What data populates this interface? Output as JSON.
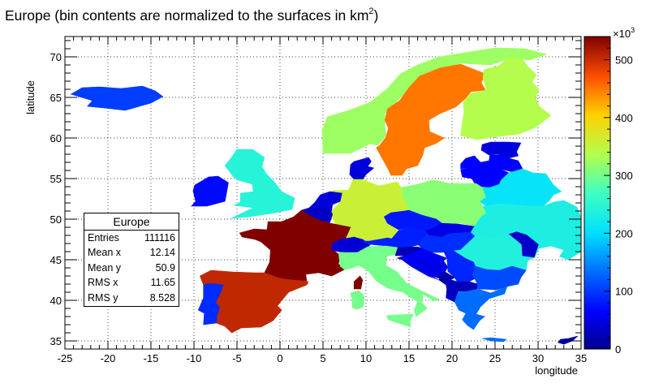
{
  "chart_data": {
    "type": "heatmap",
    "title": "Europe (bin contents are normalized to the surfaces in km",
    "title_superscript": "2",
    "title_suffix": ")",
    "xlabel": "longitude",
    "ylabel": "latitude",
    "xlim": [
      -25,
      35
    ],
    "ylim": [
      34,
      72.5
    ],
    "xticks": [
      -25,
      -20,
      -15,
      -10,
      -5,
      0,
      5,
      10,
      15,
      20,
      25,
      30,
      35
    ],
    "yticks": [
      35,
      40,
      45,
      50,
      55,
      60,
      65,
      70
    ],
    "grid": true,
    "colorbar": {
      "min": 0,
      "max": 540,
      "ticks": [
        0,
        100,
        200,
        300,
        400,
        500
      ],
      "multiplier": "×10",
      "multiplier_exp": "3"
    },
    "regions": [
      {
        "name": "Iceland",
        "value": 103
      },
      {
        "name": "Ireland",
        "value": 70
      },
      {
        "name": "United Kingdom",
        "value": 243
      },
      {
        "name": "Norway",
        "value": 324
      },
      {
        "name": "Sweden",
        "value": 450
      },
      {
        "name": "Finland",
        "value": 338
      },
      {
        "name": "Denmark",
        "value": 43
      },
      {
        "name": "Estonia",
        "value": 45
      },
      {
        "name": "Latvia",
        "value": 65
      },
      {
        "name": "Lithuania",
        "value": 65
      },
      {
        "name": "Belarus",
        "value": 208
      },
      {
        "name": "Poland",
        "value": 313
      },
      {
        "name": "Germany",
        "value": 357
      },
      {
        "name": "Netherlands",
        "value": 42
      },
      {
        "name": "Belgium",
        "value": 31
      },
      {
        "name": "France",
        "value": 544
      },
      {
        "name": "Switzerland",
        "value": 41
      },
      {
        "name": "Austria",
        "value": 84
      },
      {
        "name": "Czech Republic",
        "value": 79
      },
      {
        "name": "Slovakia",
        "value": 49
      },
      {
        "name": "Hungary",
        "value": 93
      },
      {
        "name": "Romania",
        "value": 238
      },
      {
        "name": "Moldova",
        "value": 34
      },
      {
        "name": "Ukraine",
        "value": 233
      },
      {
        "name": "Italy",
        "value": 301
      },
      {
        "name": "Slovenia",
        "value": 20
      },
      {
        "name": "Croatia",
        "value": 57
      },
      {
        "name": "Bosnia",
        "value": 51
      },
      {
        "name": "Serbia",
        "value": 88
      },
      {
        "name": "Montenegro",
        "value": 14
      },
      {
        "name": "Albania",
        "value": 29
      },
      {
        "name": "Macedonia",
        "value": 26
      },
      {
        "name": "Bulgaria",
        "value": 111
      },
      {
        "name": "Greece",
        "value": 132
      },
      {
        "name": "Spain",
        "value": 505
      },
      {
        "name": "Portugal",
        "value": 92
      },
      {
        "name": "Corsica",
        "value": 544
      },
      {
        "name": "Sardinia",
        "value": 301
      },
      {
        "name": "Cyprus",
        "value": 9
      }
    ]
  },
  "stats": {
    "title": "Europe",
    "rows": [
      {
        "label": "Entries",
        "value": "111116"
      },
      {
        "label": "Mean x",
        "value": "12.14"
      },
      {
        "label": "Mean y",
        "value": "50.9"
      },
      {
        "label": "RMS x",
        "value": "11.65"
      },
      {
        "label": "RMS y",
        "value": "8.528"
      }
    ]
  }
}
